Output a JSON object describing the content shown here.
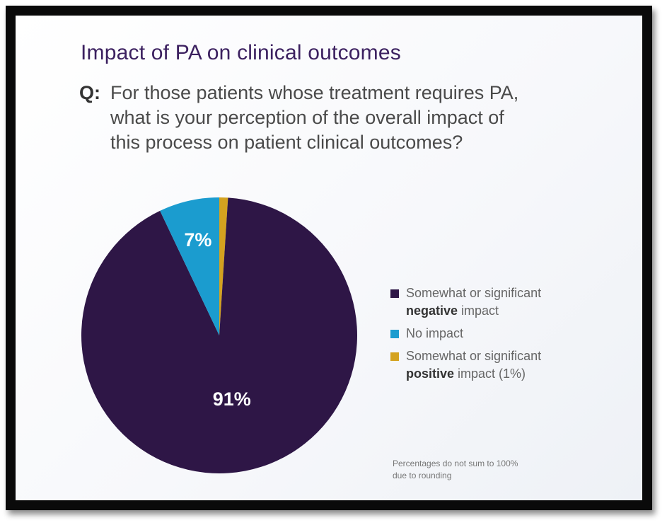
{
  "title": "Impact of PA on clinical outcomes",
  "question": {
    "prefix": "Q:",
    "lines": [
      "For those patients whose treatment requires PA,",
      "what is your perception of the overall impact of",
      "this process on patient clinical outcomes?"
    ]
  },
  "chart_data": {
    "type": "pie",
    "categories": [
      "Somewhat or significant negative impact",
      "No impact",
      "Somewhat or significant positive impact (1%)"
    ],
    "values": [
      91,
      7,
      1
    ],
    "data_labels": [
      "91%",
      "7%",
      ""
    ],
    "colors": [
      "#2e1646",
      "#1b9ccf",
      "#d4a21f"
    ],
    "legend_position": "right",
    "title": "Impact of PA on clinical outcomes"
  },
  "legend": {
    "items": [
      {
        "color": "#2e1646",
        "line1": "Somewhat or significant",
        "strong": "negative",
        "rest": " impact"
      },
      {
        "color": "#1b9ccf",
        "line1": "No impact",
        "strong": "",
        "rest": ""
      },
      {
        "color": "#d4a21f",
        "line1": "Somewhat or significant",
        "strong": "positive",
        "rest": " impact (1%)"
      }
    ]
  },
  "footnote": {
    "line1": "Percentages do not sum to 100%",
    "line2": "due to rounding"
  }
}
